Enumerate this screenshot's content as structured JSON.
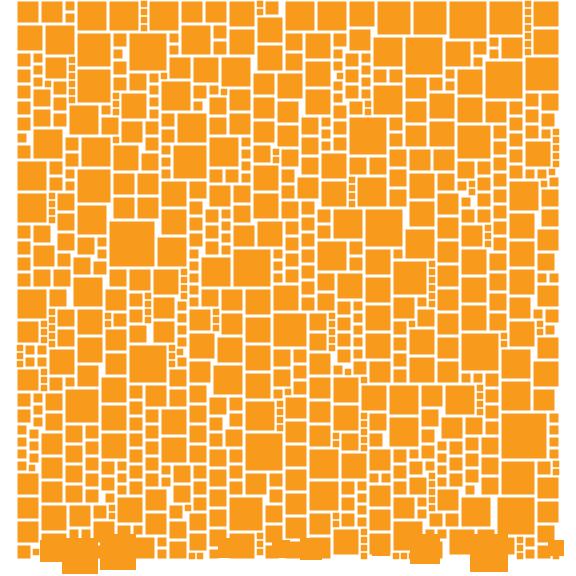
{
  "artwork": {
    "style": "square packing mosaic",
    "fill_color": "#f89a1c",
    "background_color": "#ffffff"
  }
}
